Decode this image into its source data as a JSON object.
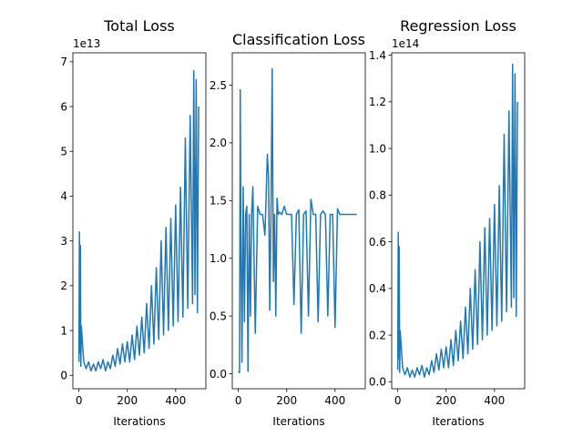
{
  "colors": {
    "series": "#1f77b4",
    "axes": "#000000",
    "background": "#ffffff"
  },
  "chart_data": [
    {
      "type": "line",
      "title": "Total Loss",
      "xlabel": "Iterations",
      "ylabel": "",
      "offset_text": "1e13",
      "xlim": [
        -25,
        525
      ],
      "ylim": [
        -0.3,
        7.2
      ],
      "xticks": [
        0,
        200,
        400
      ],
      "xtick_labels": [
        "0",
        "200",
        "400"
      ],
      "yticks": [
        0,
        1,
        2,
        3,
        4,
        5,
        6,
        7
      ],
      "ytick_labels": [
        "0",
        "1",
        "2",
        "3",
        "4",
        "5",
        "6",
        "7"
      ],
      "grid": false,
      "legend": "none",
      "series": [
        {
          "x": [
            0,
            2,
            4,
            6,
            8,
            10,
            20,
            30,
            40,
            50,
            60,
            70,
            80,
            90,
            100,
            110,
            120,
            130,
            140,
            150,
            160,
            170,
            180,
            190,
            200,
            210,
            220,
            230,
            240,
            250,
            260,
            270,
            280,
            290,
            300,
            310,
            320,
            330,
            340,
            350,
            360,
            370,
            380,
            390,
            400,
            410,
            420,
            430,
            440,
            450,
            460,
            470,
            475,
            480,
            485,
            490,
            495
          ],
          "y": [
            0.3,
            3.2,
            0.5,
            2.9,
            0.2,
            1.1,
            0.3,
            0.15,
            0.3,
            0.1,
            0.25,
            0.1,
            0.3,
            0.15,
            0.35,
            0.1,
            0.3,
            0.15,
            0.45,
            0.2,
            0.6,
            0.25,
            0.7,
            0.3,
            0.75,
            0.3,
            0.9,
            0.35,
            1.1,
            0.45,
            1.3,
            0.5,
            1.6,
            0.6,
            2.0,
            0.7,
            2.4,
            0.8,
            3.0,
            0.9,
            3.3,
            1.0,
            3.5,
            1.1,
            3.8,
            1.2,
            4.2,
            1.3,
            5.3,
            1.5,
            5.8,
            1.6,
            6.8,
            1.8,
            6.6,
            1.4,
            6.0
          ]
        }
      ]
    },
    {
      "type": "line",
      "title": "Classification Loss",
      "xlabel": "Iterations",
      "ylabel": "",
      "xlim": [
        -25,
        525
      ],
      "ylim": [
        -0.13,
        2.78
      ],
      "xticks": [
        0,
        200,
        400
      ],
      "xtick_labels": [
        "0",
        "200",
        "400"
      ],
      "yticks": [
        0.0,
        0.5,
        1.0,
        1.5,
        2.0,
        2.5
      ],
      "ytick_labels": [
        "0.0",
        "0.5",
        "1.0",
        "1.5",
        "2.0",
        "2.5"
      ],
      "grid": false,
      "legend": "none",
      "series": [
        {
          "x": [
            0,
            5,
            8,
            10,
            15,
            20,
            25,
            30,
            35,
            40,
            45,
            50,
            55,
            60,
            70,
            80,
            90,
            100,
            110,
            120,
            125,
            130,
            135,
            140,
            145,
            150,
            155,
            160,
            165,
            170,
            180,
            190,
            200,
            210,
            220,
            230,
            240,
            250,
            260,
            270,
            280,
            290,
            300,
            310,
            320,
            330,
            340,
            350,
            360,
            370,
            380,
            390,
            400,
            410,
            420,
            430,
            440,
            450,
            460,
            470,
            480,
            490
          ],
          "y": [
            0.02,
            0.01,
            2.46,
            1.38,
            0.1,
            1.62,
            0.45,
            1.38,
            1.45,
            0.02,
            1.38,
            0.5,
            1.38,
            1.62,
            0.35,
            1.45,
            1.38,
            1.38,
            1.2,
            1.9,
            1.7,
            0.55,
            1.38,
            2.64,
            0.8,
            1.38,
            0.5,
            1.52,
            1.38,
            1.4,
            1.38,
            1.45,
            1.38,
            1.38,
            1.38,
            0.6,
            1.38,
            1.42,
            0.35,
            1.38,
            1.41,
            0.5,
            1.51,
            1.38,
            1.38,
            0.45,
            1.38,
            1.41,
            1.38,
            0.5,
            1.38,
            1.38,
            0.4,
            1.43,
            1.38,
            1.38,
            1.38,
            1.38,
            1.38,
            1.38,
            1.38,
            1.38
          ]
        }
      ]
    },
    {
      "type": "line",
      "title": "Regression Loss",
      "xlabel": "Iterations",
      "ylabel": "",
      "offset_text": "1e14",
      "xlim": [
        -25,
        525
      ],
      "ylim": [
        -0.03,
        1.41
      ],
      "xticks": [
        0,
        200,
        400
      ],
      "xtick_labels": [
        "0",
        "200",
        "400"
      ],
      "yticks": [
        0.0,
        0.2,
        0.4,
        0.6,
        0.8,
        1.0,
        1.2,
        1.4
      ],
      "ytick_labels": [
        "0.0",
        "0.2",
        "0.4",
        "0.6",
        "0.8",
        "1.0",
        "1.2",
        "1.4"
      ],
      "grid": false,
      "legend": "none",
      "series": [
        {
          "x": [
            0,
            2,
            4,
            6,
            8,
            10,
            20,
            30,
            40,
            50,
            60,
            70,
            80,
            90,
            100,
            110,
            120,
            130,
            140,
            150,
            160,
            170,
            180,
            190,
            200,
            210,
            220,
            230,
            240,
            250,
            260,
            270,
            280,
            290,
            300,
            310,
            320,
            330,
            340,
            350,
            360,
            370,
            380,
            390,
            400,
            410,
            420,
            430,
            440,
            450,
            460,
            470,
            475,
            480,
            485,
            490,
            495
          ],
          "y": [
            0.05,
            0.64,
            0.1,
            0.58,
            0.04,
            0.22,
            0.06,
            0.03,
            0.06,
            0.02,
            0.05,
            0.02,
            0.06,
            0.03,
            0.07,
            0.02,
            0.06,
            0.03,
            0.09,
            0.04,
            0.12,
            0.05,
            0.14,
            0.06,
            0.15,
            0.06,
            0.18,
            0.07,
            0.22,
            0.09,
            0.26,
            0.1,
            0.32,
            0.12,
            0.4,
            0.14,
            0.48,
            0.16,
            0.6,
            0.18,
            0.66,
            0.2,
            0.7,
            0.22,
            0.76,
            0.24,
            0.84,
            0.26,
            1.06,
            0.3,
            1.16,
            0.32,
            1.36,
            0.36,
            1.32,
            0.28,
            1.2
          ]
        }
      ]
    }
  ]
}
